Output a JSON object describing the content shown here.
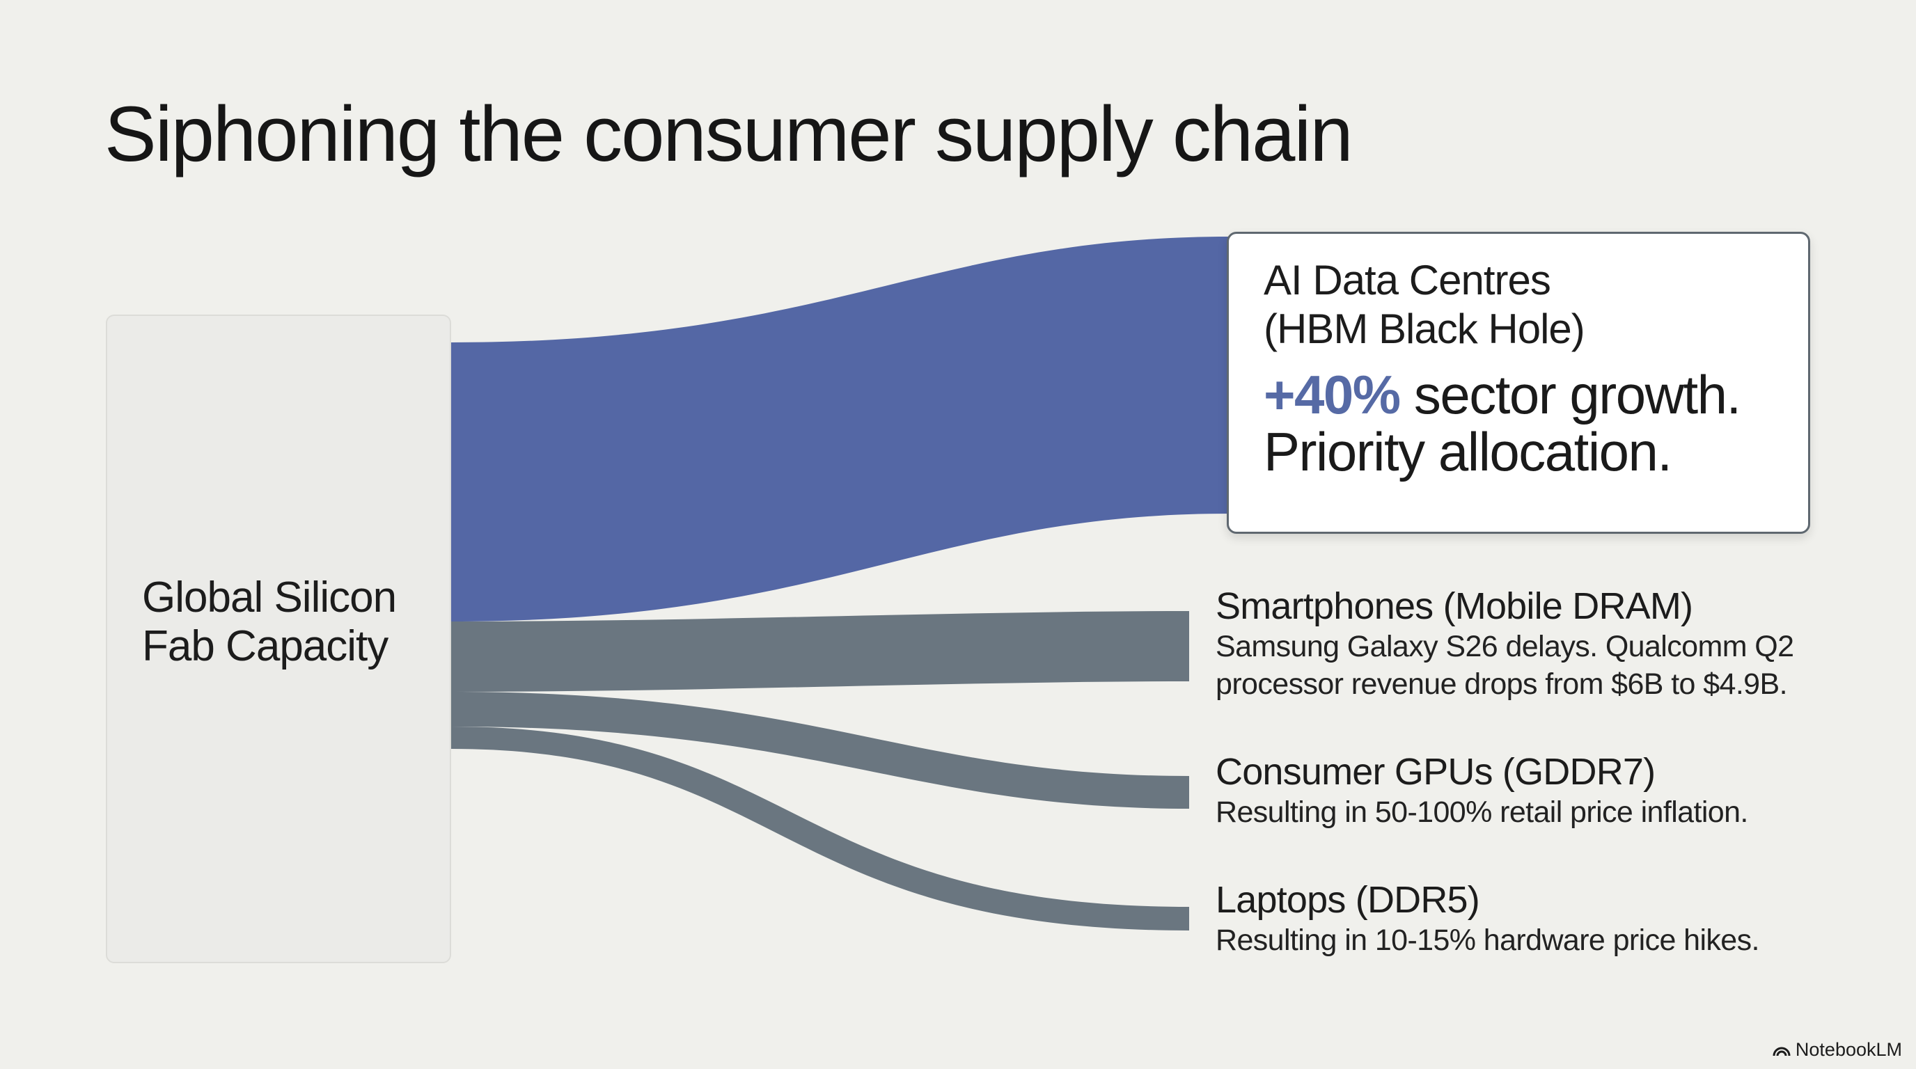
{
  "title": "Siphoning the consumer supply chain",
  "source": {
    "label_lines": [
      "Global Silicon",
      "Fab Capacity"
    ]
  },
  "main_flow": {
    "title_lines": [
      "AI Data Centres",
      "(HBM Black Hole)"
    ],
    "highlight": "+40%",
    "body_rest": " sector growth.",
    "body_line2": "Priority allocation.",
    "color": "#5467a5"
  },
  "branches": [
    {
      "title": "Smartphones (Mobile DRAM)",
      "desc_lines": [
        "Samsung Galaxy S26 delays. Qualcomm Q2",
        "processor revenue drops from $6B to $4.9B."
      ]
    },
    {
      "title": "Consumer GPUs (GDDR7)",
      "desc_lines": [
        "Resulting in 50-100% retail price inflation."
      ]
    },
    {
      "title": "Laptops (DDR5)",
      "desc_lines": [
        "Resulting in 10-15% hardware price hikes."
      ]
    }
  ],
  "colors": {
    "main_flow": "#5467a5",
    "secondary_flow": "#6a7680",
    "highlight_text": "#566aa5",
    "background": "#f0f0ec"
  },
  "brand": {
    "label": "NotebookLM",
    "icon": "notebooklm-logo-icon"
  }
}
